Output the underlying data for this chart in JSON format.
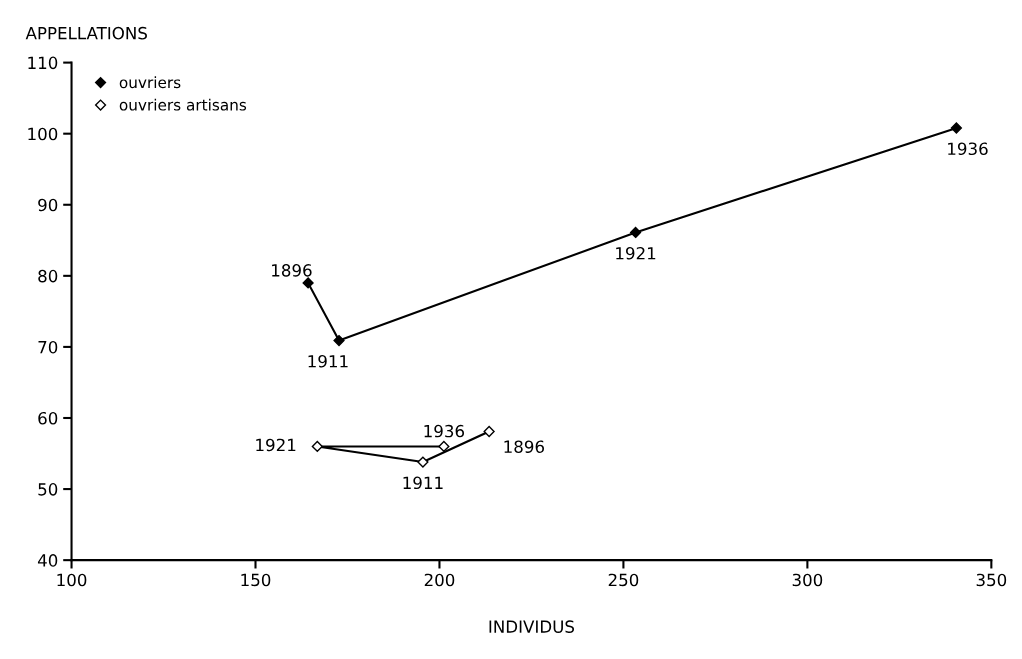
{
  "chart_data": {
    "type": "line",
    "xlabel": "INDIVIDUS",
    "ylabel": "APPELLATIONS",
    "series": [
      {
        "name": "ouvriers",
        "color": "#000000",
        "x": [
          164.3,
          172.7,
          253.3,
          340.5
        ],
        "values": [
          79.0,
          70.9,
          86.1,
          100.8
        ]
      },
      {
        "name": "ouvriers artisans",
        "color": "#000000",
        "x": [
          213.5,
          195.5,
          166.8,
          201.2
        ],
        "values": [
          58.1,
          53.8,
          56.0,
          56.0
        ]
      }
    ],
    "annotations": [
      {
        "text": "1896",
        "x": 164.3,
        "y": 79.0
      },
      {
        "text": "1911",
        "x": 172.7,
        "y": 70.9
      },
      {
        "text": "1921",
        "x": 253.3,
        "y": 86.1
      },
      {
        "text": "1936",
        "x": 340.5,
        "y": 100.8
      },
      {
        "text": "1896",
        "x": 213.5,
        "y": 58.1
      },
      {
        "text": "1911",
        "x": 195.5,
        "y": 53.8
      },
      {
        "text": "1921",
        "x": 166.8,
        "y": 56.0
      },
      {
        "text": "1936",
        "x": 201.2,
        "y": 56.0
      }
    ],
    "xlim": [
      100,
      350
    ],
    "ylim": [
      40,
      110
    ],
    "xticks": [
      100,
      150,
      200,
      250,
      300,
      350
    ],
    "yticks": [
      40,
      50,
      60,
      70,
      80,
      90,
      100,
      110
    ],
    "marker": "diamond",
    "line_style": "solid",
    "grid": false,
    "legend": "top left"
  }
}
